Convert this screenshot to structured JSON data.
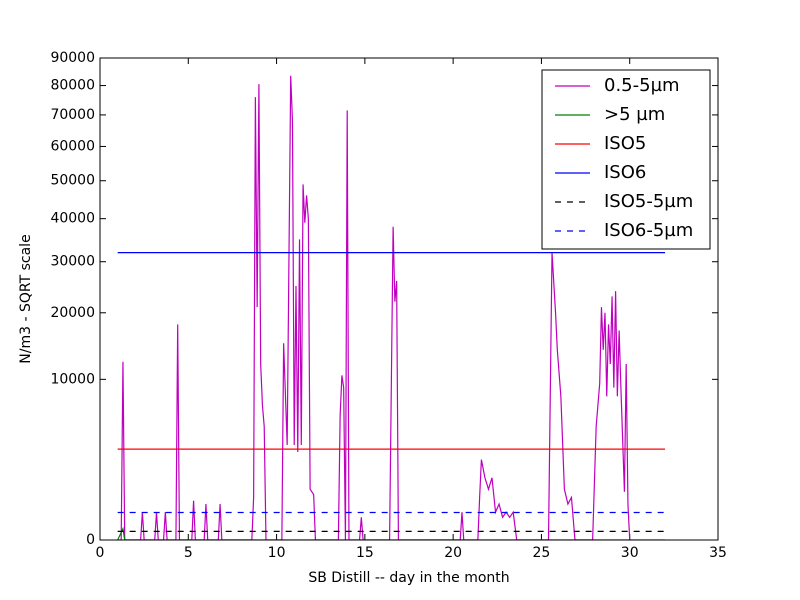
{
  "chart_data": {
    "type": "line",
    "xlabel": "SB Distill -- day in the month",
    "ylabel": "N/m3 - SQRT scale",
    "yscale": "sqrt",
    "xlim": [
      0,
      35
    ],
    "xticks": [
      0,
      5,
      10,
      15,
      20,
      25,
      30,
      35
    ],
    "ylim": [
      0,
      90000
    ],
    "yticks": [
      0,
      10000,
      20000,
      30000,
      40000,
      50000,
      60000,
      70000,
      80000,
      90000
    ],
    "legend": "upper right",
    "series": [
      {
        "name": "0.5-5µm",
        "color": "#bf00bf",
        "dashed": false,
        "x": [
          1.0,
          1.2,
          1.3,
          1.4,
          2.3,
          2.4,
          2.5,
          3.1,
          3.2,
          3.3,
          3.6,
          3.7,
          3.8,
          4.3,
          4.4,
          4.5,
          5.2,
          5.3,
          5.4,
          5.9,
          6.0,
          6.1,
          6.7,
          6.8,
          6.9,
          8.6,
          8.7,
          8.8,
          8.9,
          9.0,
          9.1,
          9.2,
          9.3,
          9.4,
          10.3,
          10.4,
          10.6,
          10.8,
          10.9,
          11.0,
          11.1,
          11.2,
          11.3,
          11.4,
          11.5,
          11.6,
          11.7,
          11.8,
          11.9,
          12.1,
          12.2,
          13.5,
          13.6,
          13.7,
          13.8,
          13.9,
          14.0,
          14.1,
          14.7,
          14.8,
          14.9,
          16.4,
          16.6,
          16.7,
          16.8,
          16.9,
          20.4,
          20.5,
          20.6,
          21.4,
          21.5,
          21.6,
          21.8,
          22.0,
          22.2,
          22.4,
          22.6,
          22.8,
          23.0,
          23.2,
          23.4,
          23.6,
          25.4,
          25.6,
          25.8,
          25.9,
          26.1,
          26.3,
          26.5,
          26.7,
          26.9,
          27.9,
          28.1,
          28.3,
          28.4,
          28.5,
          28.6,
          28.7,
          28.8,
          28.9,
          29.0,
          29.1,
          29.2,
          29.3,
          29.4,
          29.5,
          29.7,
          29.8,
          29.9,
          30.0
        ],
        "values": [
          0,
          0,
          12300,
          0,
          0,
          300,
          0,
          0,
          300,
          0,
          0,
          300,
          0,
          0,
          18000,
          0,
          0,
          600,
          0,
          0,
          500,
          0,
          0,
          500,
          0,
          0,
          700,
          76000,
          21000,
          80500,
          12000,
          7000,
          5000,
          0,
          0,
          15000,
          3500,
          83500,
          68000,
          3500,
          25000,
          3000,
          35000,
          3500,
          49000,
          39000,
          46000,
          40000,
          1000,
          800,
          0,
          0,
          6000,
          10500,
          9000,
          0,
          71500,
          0,
          0,
          200,
          0,
          0,
          38000,
          22000,
          26000,
          0,
          0,
          300,
          0,
          0,
          700,
          2500,
          1500,
          1000,
          1500,
          300,
          500,
          200,
          300,
          200,
          300,
          0,
          0,
          32000,
          20000,
          14000,
          8000,
          1000,
          500,
          700,
          0,
          0,
          5000,
          9500,
          21000,
          14000,
          20000,
          8000,
          18000,
          12000,
          23000,
          9000,
          24000,
          8000,
          17000,
          9000,
          900,
          12000,
          500,
          0
        ]
      },
      {
        "name": ">5 µm",
        "color": "#008000",
        "dashed": false,
        "x": [
          1.0,
          1.3,
          1.4,
          32.0
        ],
        "values": [
          0,
          50,
          0,
          0
        ]
      },
      {
        "name": "ISO5",
        "color": "#ff0000",
        "dashed": false,
        "x": [
          1.0,
          32.0
        ],
        "values": [
          3200,
          3200
        ]
      },
      {
        "name": "ISO6",
        "color": "#0000ff",
        "dashed": false,
        "x": [
          1.0,
          32.0
        ],
        "values": [
          32000,
          32000
        ]
      },
      {
        "name": "ISO5-5µm",
        "color": "#000000",
        "dashed": true,
        "x": [
          1.0,
          32.0
        ],
        "values": [
          29,
          29
        ]
      },
      {
        "name": "ISO6-5µm",
        "color": "#0000ff",
        "dashed": true,
        "x": [
          1.0,
          32.0
        ],
        "values": [
          293,
          293
        ]
      }
    ]
  }
}
